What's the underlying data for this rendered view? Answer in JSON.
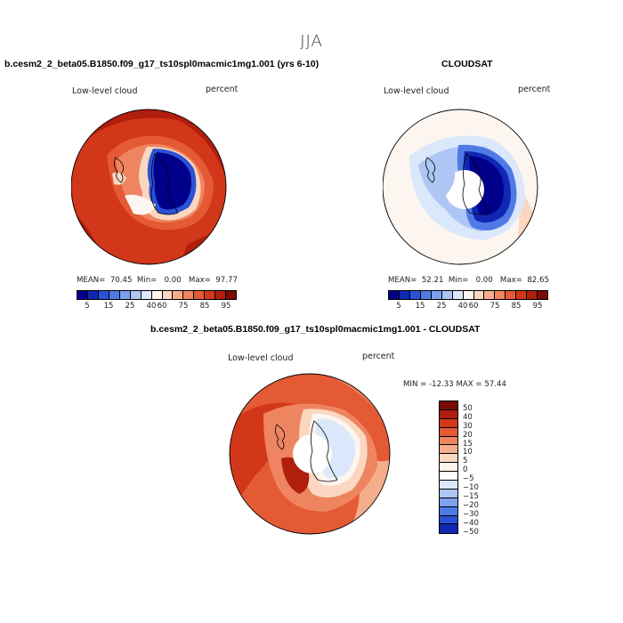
{
  "season": "JJA",
  "panels": {
    "model": {
      "case_title": "b.cesm2_2_beta05.B1850.f09_g17_ts10spl0macmic1mg1.001 (yrs 6-10)",
      "variable_label": "Low-level cloud",
      "units_label": "percent",
      "stats": {
        "mean_label": "MEAN=",
        "mean": "70.45",
        "min_label": "Min=",
        "min": "0.00",
        "max_label": "Max=",
        "max": "97.77"
      }
    },
    "obs": {
      "case_title": "CLOUDSAT",
      "variable_label": "Low-level cloud",
      "units_label": "percent",
      "stats": {
        "mean_label": "MEAN=",
        "mean": "52.21",
        "min_label": "Min=",
        "min": "0.00",
        "max_label": "Max=",
        "max": "82.65"
      }
    },
    "diff": {
      "case_title": "b.cesm2_2_beta05.B1850.f09_g17_ts10spl0macmic1mg1.001 - CLOUDSAT",
      "variable_label": "Low-level cloud",
      "units_label": "percent",
      "stats_text": "MIN = -12.33 MAX =  57.44"
    }
  },
  "colorbar_abs": {
    "colors": [
      "#00008b",
      "#1026b4",
      "#2a52d6",
      "#4f7ae6",
      "#7ea0ee",
      "#aec6f4",
      "#dbe7fa",
      "#fdf5ef",
      "#fbd6c0",
      "#f5ae8c",
      "#ee8560",
      "#e45a34",
      "#d2371a",
      "#b01e0e",
      "#7a0a06"
    ],
    "ticks": [
      "5",
      "15",
      "25",
      "40",
      "60",
      "75",
      "85",
      "95"
    ]
  },
  "colorbar_diff": {
    "colors": [
      "#7a0a06",
      "#b01e0e",
      "#d2371a",
      "#e45a34",
      "#ee8560",
      "#f5ae8c",
      "#fbd6c0",
      "#fdf5ef",
      "#ffffff",
      "#dbe7fa",
      "#aec6f4",
      "#7ea0ee",
      "#4f7ae6",
      "#2a52d6",
      "#1026b4"
    ],
    "ticks": [
      "50",
      "40",
      "30",
      "20",
      "15",
      "10",
      "5",
      "0",
      "−5",
      "−10",
      "−15",
      "−20",
      "−30",
      "−40",
      "−50"
    ]
  }
}
